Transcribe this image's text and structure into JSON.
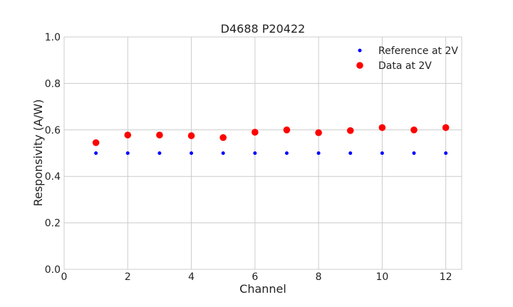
{
  "chart_data": {
    "type": "scatter",
    "title": "D4688 P20422",
    "xlabel": "Channel",
    "ylabel": "Responsivity (A/W)",
    "xlim": [
      0,
      12.5
    ],
    "ylim": [
      0.0,
      1.0
    ],
    "xticks": [
      "0",
      "2",
      "4",
      "6",
      "8",
      "10",
      "12"
    ],
    "xtick_values": [
      0,
      2,
      4,
      6,
      8,
      10,
      12
    ],
    "yticks": [
      "0.0",
      "0.2",
      "0.4",
      "0.6",
      "0.8",
      "1.0"
    ],
    "ytick_values": [
      0.0,
      0.2,
      0.4,
      0.6,
      0.8,
      1.0
    ],
    "grid": true,
    "legend_position": "top-right",
    "series": [
      {
        "name": "Reference at 2V",
        "color": "#0000ff",
        "marker": "small-dot",
        "x": [
          1,
          2,
          3,
          4,
          5,
          6,
          7,
          8,
          9,
          10,
          11,
          12
        ],
        "y": [
          0.5,
          0.5,
          0.5,
          0.5,
          0.5,
          0.5,
          0.5,
          0.5,
          0.5,
          0.5,
          0.5,
          0.5
        ]
      },
      {
        "name": "Data at 2V",
        "color": "#ff0000",
        "marker": "large-dot",
        "x": [
          1,
          2,
          3,
          4,
          5,
          6,
          7,
          8,
          9,
          10,
          11,
          12
        ],
        "y": [
          0.545,
          0.578,
          0.578,
          0.575,
          0.567,
          0.59,
          0.6,
          0.588,
          0.597,
          0.61,
          0.6,
          0.61
        ]
      }
    ]
  }
}
